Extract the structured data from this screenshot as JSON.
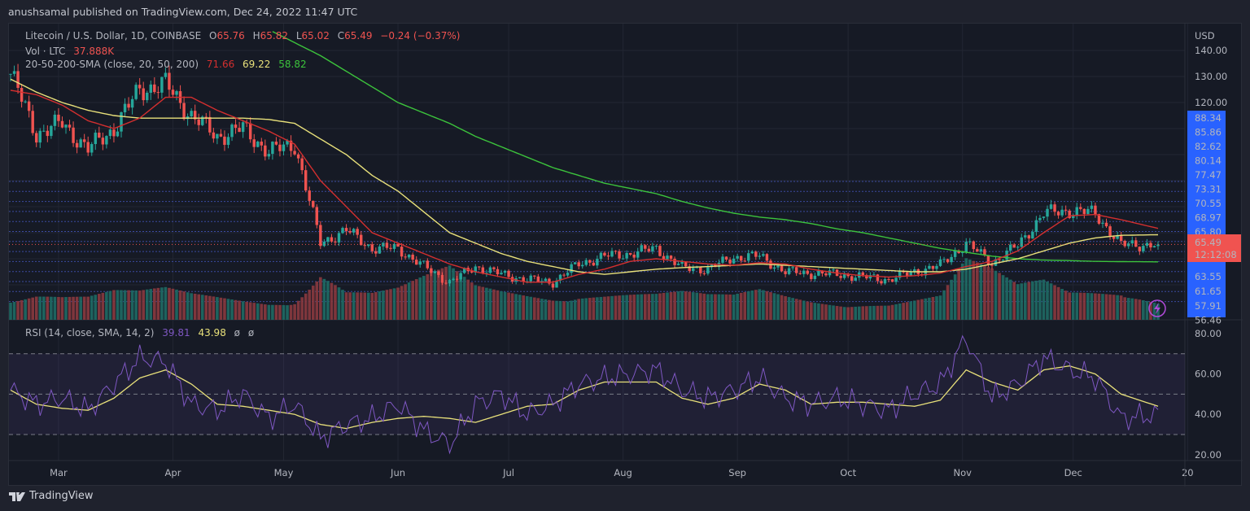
{
  "header": {
    "published": "anushsamal published on TradingView.com, Dec 24, 2022 11:47 UTC"
  },
  "legend": {
    "symbol": "Litecoin / U.S. Dollar, 1D, COINBASE",
    "o_label": "O",
    "o": "65.76",
    "h_label": "H",
    "h": "65.82",
    "l_label": "L",
    "l": "65.02",
    "c_label": "C",
    "c": "65.49",
    "change": "−0.24 (−0.37%)",
    "vol_label": "Vol · LTC",
    "vol": "37.888K",
    "sma_label": "20-50-200-SMA (close, 20, 50, 200)",
    "sma20": "71.66",
    "sma50": "69.22",
    "sma200": "58.82",
    "rsi_label": "RSI (14, close, SMA, 14, 2)",
    "rsi": "39.81",
    "rsi_sma": "43.98",
    "rsi_extra1": "ø",
    "rsi_extra2": "ø"
  },
  "price_axis": {
    "currency": "USD",
    "ticks": [
      "140.00",
      "130.00",
      "120.00"
    ],
    "levels": [
      "88.34",
      "85.86",
      "82.62",
      "80.14",
      "77.47",
      "73.31",
      "70.55",
      "68.97",
      "65.80",
      "63.55",
      "61.65",
      "57.91",
      "56.46"
    ],
    "last_price": "65.49",
    "countdown": "12:12:08"
  },
  "rsi_axis": {
    "ticks": [
      "80.00",
      "60.00",
      "40.00",
      "20.00"
    ]
  },
  "time_axis": {
    "labels": [
      "Mar",
      "Apr",
      "May",
      "Jun",
      "Jul",
      "Aug",
      "Sep",
      "Oct",
      "Nov",
      "Dec",
      "20"
    ]
  },
  "footer": {
    "brand": "TradingView"
  },
  "colors": {
    "up": "#26a69a",
    "down": "#ef5350",
    "sma20": "#d32f2f",
    "sma50": "#e8e07a",
    "sma200": "#3cc33c",
    "rsi": "#7e57c2",
    "rsi_sma": "#e8e07a",
    "level_box": "#2962ff",
    "last_box": "#f05350"
  },
  "chart_data": {
    "type": "candlestick",
    "ylim": [
      40,
      150
    ],
    "rsi_ylim": [
      15,
      85
    ],
    "x": [
      "2022-02-16",
      "2022-02-23",
      "2022-03-02",
      "2022-03-09",
      "2022-03-16",
      "2022-03-23",
      "2022-03-30",
      "2022-04-06",
      "2022-04-13",
      "2022-04-20",
      "2022-04-27",
      "2022-05-04",
      "2022-05-11",
      "2022-05-18",
      "2022-05-25",
      "2022-06-01",
      "2022-06-08",
      "2022-06-15",
      "2022-06-22",
      "2022-06-29",
      "2022-07-06",
      "2022-07-13",
      "2022-07-20",
      "2022-07-27",
      "2022-08-03",
      "2022-08-10",
      "2022-08-17",
      "2022-08-24",
      "2022-08-31",
      "2022-09-07",
      "2022-09-14",
      "2022-09-21",
      "2022-09-28",
      "2022-10-05",
      "2022-10-12",
      "2022-10-19",
      "2022-10-26",
      "2022-11-02",
      "2022-11-09",
      "2022-11-16",
      "2022-11-23",
      "2022-11-30",
      "2022-12-07",
      "2022-12-14",
      "2022-12-24"
    ],
    "close": [
      131,
      108,
      112,
      102,
      110,
      125,
      127,
      115,
      107,
      110,
      101,
      104,
      66,
      71,
      64,
      64,
      57,
      51,
      57,
      54,
      52,
      51,
      58,
      61,
      62,
      64,
      56.5,
      56,
      60.6,
      61,
      55,
      54.4,
      54,
      53,
      52,
      55,
      57.5,
      66,
      58.4,
      65,
      77.5,
      78.5,
      77.5,
      65.3,
      65.49
    ],
    "volume": [
      40,
      45,
      38,
      35,
      42,
      40,
      45,
      38,
      35,
      32,
      30,
      35,
      80,
      45,
      40,
      45,
      60,
      75,
      50,
      45,
      42,
      40,
      45,
      42,
      40,
      38,
      40,
      35,
      35,
      45,
      38,
      32,
      30,
      28,
      25,
      30,
      35,
      85,
      70,
      50,
      60,
      45,
      50,
      55,
      30
    ],
    "sma20": [
      124.7,
      123,
      119,
      113,
      110,
      114,
      122,
      122,
      117,
      113,
      109,
      104,
      90,
      80,
      70,
      66,
      62,
      58,
      55,
      53,
      51,
      51,
      54,
      56,
      59,
      60,
      59,
      58,
      57.5,
      58.5,
      58,
      56,
      54.5,
      53.5,
      53,
      53.5,
      54.5,
      57,
      59,
      63,
      70,
      76.5,
      77,
      75,
      71.66
    ],
    "sma50": [
      129,
      124,
      120,
      117,
      115,
      114,
      114,
      114,
      114,
      114,
      113.5,
      112,
      106,
      100,
      92,
      86,
      78,
      70,
      66,
      62,
      59,
      57,
      55,
      54,
      55,
      56,
      56.6,
      57,
      57.5,
      58,
      57.5,
      57,
      56.5,
      56,
      55.5,
      55,
      55,
      56,
      58,
      60,
      63,
      66,
      68,
      69,
      69.22
    ],
    "sma200": [
      null,
      null,
      null,
      null,
      null,
      null,
      null,
      null,
      null,
      null,
      148,
      143,
      138,
      132,
      126,
      120,
      116,
      112,
      107,
      103,
      99,
      95,
      92,
      89,
      87,
      85,
      82,
      79.5,
      77.5,
      76,
      75,
      73.5,
      71.5,
      70,
      68,
      66,
      64,
      62.5,
      61,
      60,
      59.5,
      59.3,
      59,
      58.9,
      58.82
    ],
    "rsi": [
      52,
      45,
      48,
      42,
      55,
      68,
      66,
      45,
      42,
      50,
      38,
      45,
      28,
      35,
      38,
      45,
      32,
      25,
      45,
      50,
      40,
      45,
      55,
      58,
      60,
      62,
      52,
      48,
      52,
      58,
      48,
      45,
      48,
      45,
      42,
      50,
      55,
      78,
      48,
      55,
      68,
      62,
      58,
      38,
      39.81
    ],
    "rsi_sma": [
      52,
      45,
      43,
      42,
      48,
      58,
      62,
      55,
      45,
      44,
      42,
      40,
      35,
      33,
      36,
      38,
      39,
      38,
      36,
      40,
      44,
      45,
      52,
      56,
      56,
      56,
      48,
      45,
      48,
      55,
      52,
      45,
      46,
      46,
      45,
      44,
      47,
      62,
      56,
      52,
      62,
      64,
      60,
      50,
      43.98
    ],
    "rsi_levels": [
      70,
      50,
      30
    ]
  }
}
